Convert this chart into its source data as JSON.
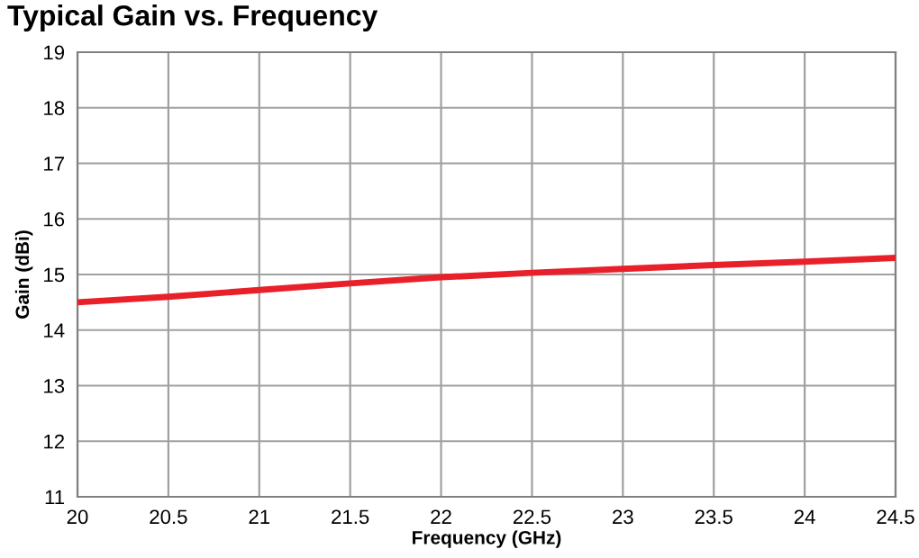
{
  "chart_data": {
    "type": "line",
    "title": "Typical Gain vs. Frequency",
    "xlabel": "Frequency (GHz)",
    "ylabel": "Gain (dBi)",
    "x": [
      20,
      20.5,
      21,
      21.5,
      22,
      22.5,
      23,
      23.5,
      24,
      24.5
    ],
    "series": [
      {
        "color": "#e8202a",
        "values": [
          14.5,
          14.6,
          14.72,
          14.84,
          14.95,
          15.03,
          15.1,
          15.17,
          15.23,
          15.3
        ]
      }
    ],
    "xlim": [
      20,
      24.5
    ],
    "xticks": [
      20,
      20.5,
      21,
      21.5,
      22,
      22.5,
      23,
      23.5,
      24,
      24.5
    ],
    "ylim": [
      11,
      19
    ],
    "yticks": [
      11,
      12,
      13,
      14,
      15,
      16,
      17,
      18,
      19
    ],
    "grid": true,
    "legend": false,
    "marker": "none",
    "line_style": "solid"
  }
}
